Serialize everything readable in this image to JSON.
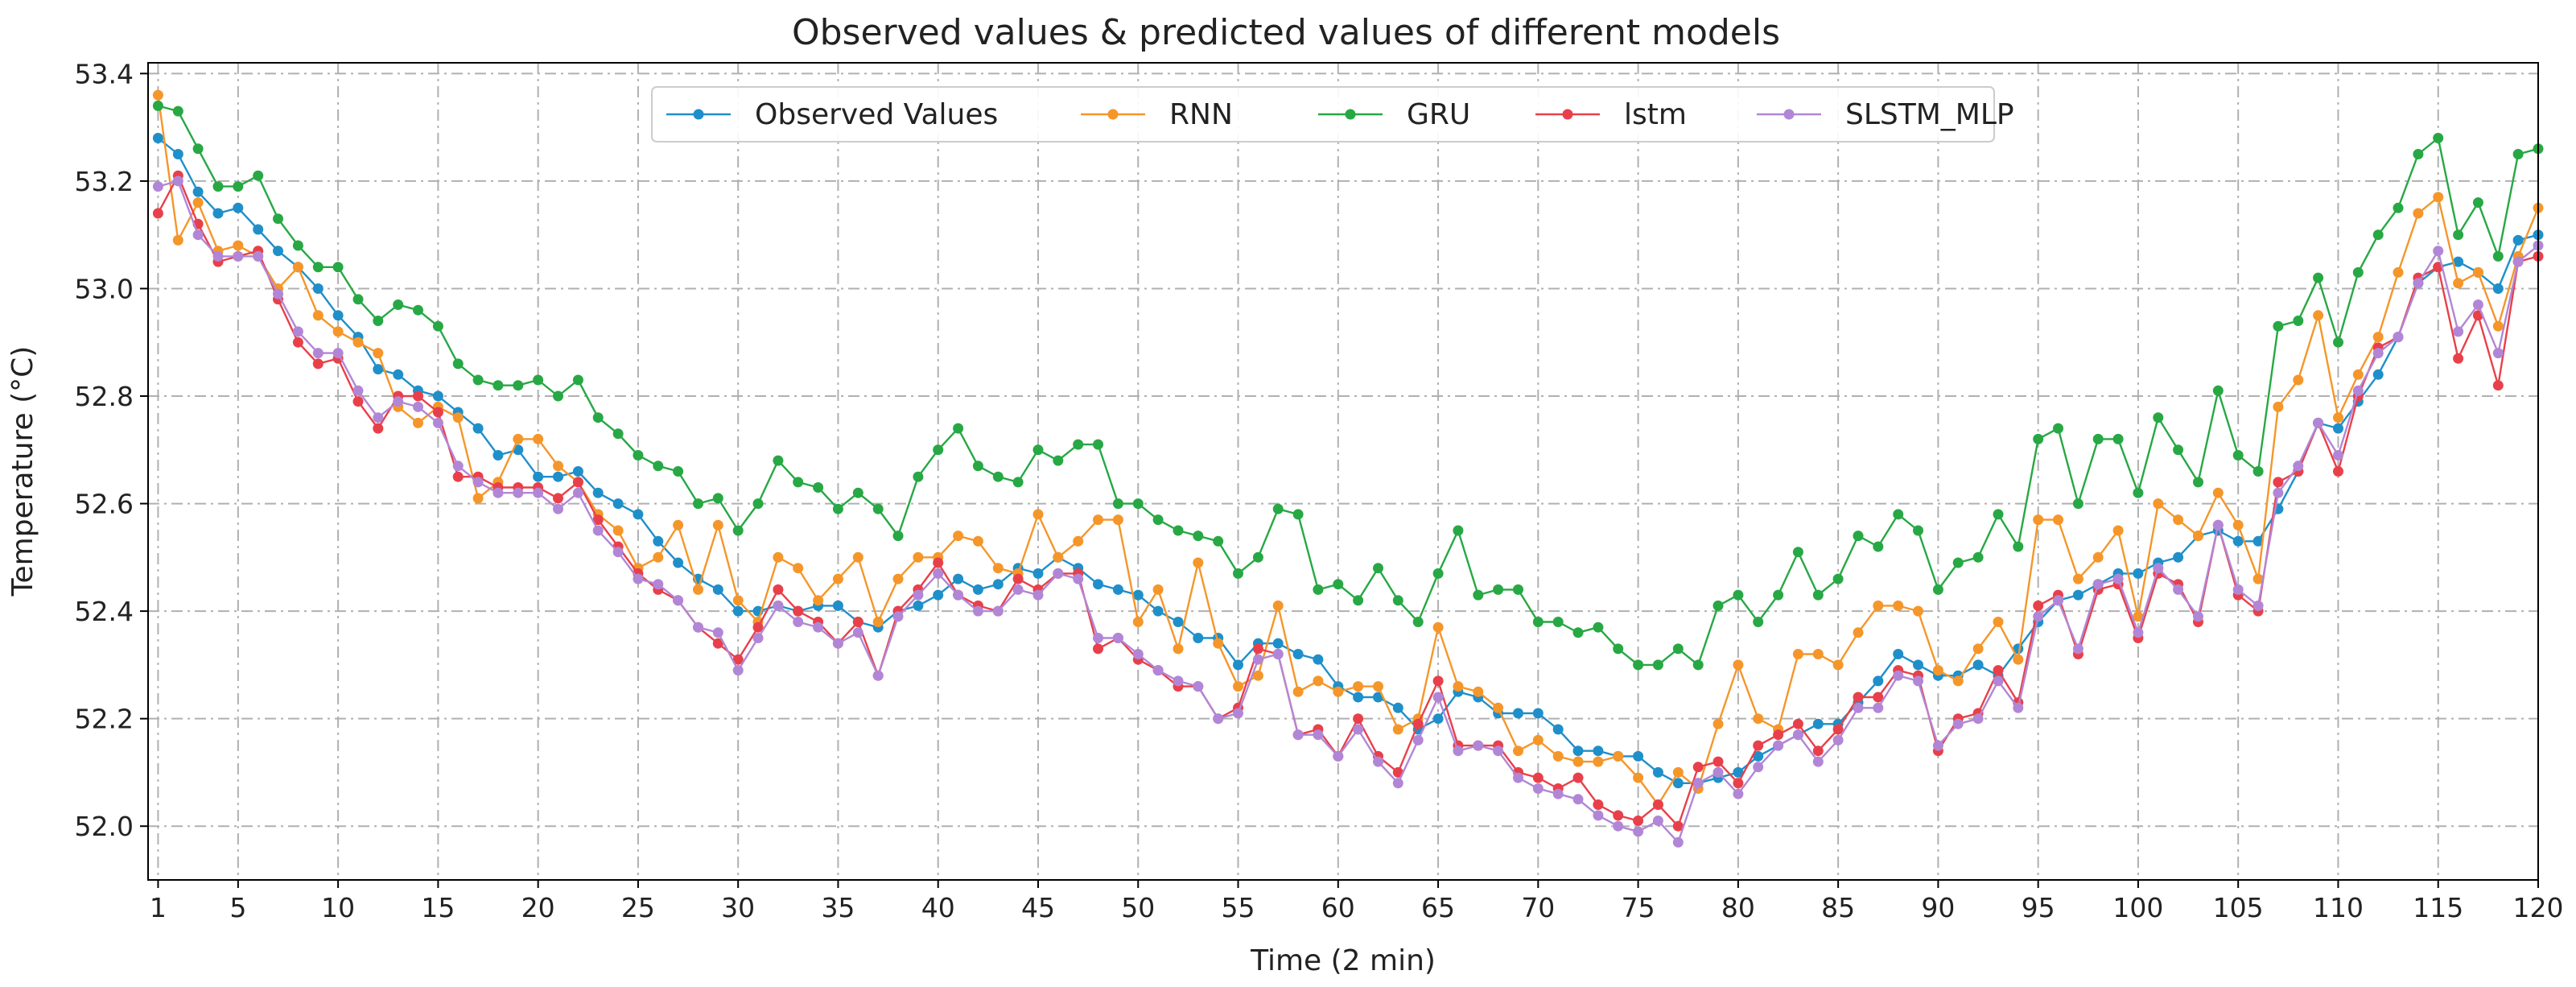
{
  "chart_data": {
    "type": "line",
    "title": "Observed values & predicted values of different models",
    "xlabel": "Time (2 min)",
    "ylabel": "Temperature (°C)",
    "xlim": [
      0.5,
      120
    ],
    "ylim": [
      51.9,
      53.42
    ],
    "xticks": [
      1,
      5,
      10,
      15,
      20,
      25,
      30,
      35,
      40,
      45,
      50,
      55,
      60,
      65,
      70,
      75,
      80,
      85,
      90,
      95,
      100,
      105,
      110,
      115,
      120
    ],
    "xtick_labels": [
      "1",
      "5",
      "10",
      "15",
      "20",
      "25",
      "30",
      "35",
      "40",
      "45",
      "50",
      "55",
      "60",
      "65",
      "70",
      "75",
      "80",
      "85",
      "90",
      "95",
      "100",
      "105",
      "110",
      "115",
      "120"
    ],
    "yticks": [
      52.0,
      52.2,
      52.4,
      52.6,
      52.8,
      53.0,
      53.2,
      53.4
    ],
    "ytick_labels": [
      "52.0",
      "52.2",
      "52.4",
      "52.6",
      "52.8",
      "53.0",
      "53.2",
      "53.4"
    ],
    "grid": true,
    "legend_position": "top-center",
    "x_start": 1,
    "series": [
      {
        "name": "Observed Values",
        "color": "#1f8fc9",
        "values": [
          53.28,
          53.25,
          53.18,
          53.14,
          53.15,
          53.11,
          53.07,
          53.04,
          53.0,
          52.95,
          52.91,
          52.85,
          52.84,
          52.81,
          52.8,
          52.77,
          52.74,
          52.69,
          52.7,
          52.65,
          52.65,
          52.66,
          52.62,
          52.6,
          52.58,
          52.53,
          52.49,
          52.46,
          52.44,
          52.4,
          52.4,
          52.41,
          52.4,
          52.41,
          52.41,
          52.38,
          52.37,
          52.4,
          52.41,
          52.43,
          52.46,
          52.44,
          52.45,
          52.48,
          52.47,
          52.5,
          52.48,
          52.45,
          52.44,
          52.43,
          52.4,
          52.38,
          52.35,
          52.35,
          52.3,
          52.34,
          52.34,
          52.32,
          52.31,
          52.26,
          52.24,
          52.24,
          52.22,
          52.18,
          52.2,
          52.25,
          52.24,
          52.21,
          52.21,
          52.21,
          52.18,
          52.14,
          52.14,
          52.13,
          52.13,
          52.1,
          52.08,
          52.08,
          52.09,
          52.1,
          52.13,
          52.15,
          52.17,
          52.19,
          52.19,
          52.23,
          52.27,
          52.32,
          52.3,
          52.28,
          52.28,
          52.3,
          52.28,
          52.33,
          52.38,
          52.42,
          52.43,
          52.45,
          52.47,
          52.47,
          52.49,
          52.5,
          52.54,
          52.55,
          52.53,
          52.53,
          52.59,
          52.66,
          52.75,
          52.74,
          52.79,
          52.84,
          52.91,
          53.01,
          53.04,
          53.05,
          53.03,
          53.0,
          53.09,
          53.1
        ]
      },
      {
        "name": "RNN",
        "color": "#f5962a",
        "values": [
          53.36,
          53.09,
          53.16,
          53.07,
          53.08,
          53.06,
          53.0,
          53.04,
          52.95,
          52.92,
          52.9,
          52.88,
          52.78,
          52.75,
          52.78,
          52.76,
          52.61,
          52.64,
          52.72,
          52.72,
          52.67,
          52.64,
          52.58,
          52.55,
          52.48,
          52.5,
          52.56,
          52.44,
          52.56,
          52.42,
          52.38,
          52.5,
          52.48,
          52.42,
          52.46,
          52.5,
          52.38,
          52.46,
          52.5,
          52.5,
          52.54,
          52.53,
          52.48,
          52.47,
          52.58,
          52.5,
          52.53,
          52.57,
          52.57,
          52.38,
          52.44,
          52.33,
          52.49,
          52.34,
          52.26,
          52.28,
          52.41,
          52.25,
          52.27,
          52.25,
          52.26,
          52.26,
          52.18,
          52.2,
          52.37,
          52.26,
          52.25,
          52.22,
          52.14,
          52.16,
          52.13,
          52.12,
          52.12,
          52.13,
          52.09,
          52.04,
          52.1,
          52.07,
          52.19,
          52.3,
          52.2,
          52.18,
          52.32,
          52.32,
          52.3,
          52.36,
          52.41,
          52.41,
          52.4,
          52.29,
          52.27,
          52.33,
          52.38,
          52.31,
          52.57,
          52.57,
          52.46,
          52.5,
          52.55,
          52.39,
          52.6,
          52.57,
          52.54,
          52.62,
          52.56,
          52.46,
          52.78,
          52.83,
          52.95,
          52.76,
          52.84,
          52.91,
          53.03,
          53.14,
          53.17,
          53.01,
          53.03,
          52.93,
          53.06,
          53.15
        ]
      },
      {
        "name": "GRU",
        "color": "#27a844",
        "values": [
          53.34,
          53.33,
          53.26,
          53.19,
          53.19,
          53.21,
          53.13,
          53.08,
          53.04,
          53.04,
          52.98,
          52.94,
          52.97,
          52.96,
          52.93,
          52.86,
          52.83,
          52.82,
          52.82,
          52.83,
          52.8,
          52.83,
          52.76,
          52.73,
          52.69,
          52.67,
          52.66,
          52.6,
          52.61,
          52.55,
          52.6,
          52.68,
          52.64,
          52.63,
          52.59,
          52.62,
          52.59,
          52.54,
          52.65,
          52.7,
          52.74,
          52.67,
          52.65,
          52.64,
          52.7,
          52.68,
          52.71,
          52.71,
          52.6,
          52.6,
          52.57,
          52.55,
          52.54,
          52.53,
          52.47,
          52.5,
          52.59,
          52.58,
          52.44,
          52.45,
          52.42,
          52.48,
          52.42,
          52.38,
          52.47,
          52.55,
          52.43,
          52.44,
          52.44,
          52.38,
          52.38,
          52.36,
          52.37,
          52.33,
          52.3,
          52.3,
          52.33,
          52.3,
          52.41,
          52.43,
          52.38,
          52.43,
          52.51,
          52.43,
          52.46,
          52.54,
          52.52,
          52.58,
          52.55,
          52.44,
          52.49,
          52.5,
          52.58,
          52.52,
          52.72,
          52.74,
          52.6,
          52.72,
          52.72,
          52.62,
          52.76,
          52.7,
          52.64,
          52.81,
          52.69,
          52.66,
          52.93,
          52.94,
          53.02,
          52.9,
          53.03,
          53.1,
          53.15,
          53.25,
          53.28,
          53.1,
          53.16,
          53.06,
          53.25,
          53.26
        ]
      },
      {
        "name": "lstm",
        "color": "#e8404a",
        "values": [
          53.14,
          53.21,
          53.12,
          53.05,
          53.06,
          53.07,
          52.98,
          52.9,
          52.86,
          52.87,
          52.79,
          52.74,
          52.8,
          52.8,
          52.77,
          52.65,
          52.65,
          52.63,
          52.63,
          52.63,
          52.61,
          52.64,
          52.57,
          52.52,
          52.47,
          52.44,
          52.42,
          52.37,
          52.34,
          52.31,
          52.37,
          52.44,
          52.4,
          52.38,
          52.34,
          52.38,
          52.28,
          52.4,
          52.44,
          52.49,
          52.43,
          52.41,
          52.4,
          52.46,
          52.44,
          52.47,
          52.47,
          52.33,
          52.35,
          52.31,
          52.29,
          52.26,
          52.26,
          52.2,
          52.22,
          52.33,
          52.32,
          52.17,
          52.18,
          52.13,
          52.2,
          52.13,
          52.1,
          52.19,
          52.27,
          52.15,
          52.15,
          52.15,
          52.1,
          52.09,
          52.07,
          52.09,
          52.04,
          52.02,
          52.01,
          52.04,
          52.0,
          52.11,
          52.12,
          52.08,
          52.15,
          52.17,
          52.19,
          52.14,
          52.18,
          52.24,
          52.24,
          52.29,
          52.28,
          52.14,
          52.2,
          52.21,
          52.29,
          52.23,
          52.41,
          52.43,
          52.32,
          52.44,
          52.45,
          52.35,
          52.47,
          52.45,
          52.38,
          52.56,
          52.43,
          52.4,
          52.64,
          52.66,
          52.75,
          52.66,
          52.8,
          52.89,
          52.91,
          53.02,
          53.04,
          52.87,
          52.95,
          52.82,
          53.05,
          53.06
        ]
      },
      {
        "name": "SLSTM_MLP",
        "color": "#b286d6",
        "values": [
          53.19,
          53.2,
          53.1,
          53.06,
          53.06,
          53.06,
          52.99,
          52.92,
          52.88,
          52.88,
          52.81,
          52.76,
          52.79,
          52.78,
          52.75,
          52.67,
          52.64,
          52.62,
          52.62,
          52.62,
          52.59,
          52.62,
          52.55,
          52.51,
          52.46,
          52.45,
          52.42,
          52.37,
          52.36,
          52.29,
          52.35,
          52.41,
          52.38,
          52.37,
          52.34,
          52.36,
          52.28,
          52.39,
          52.43,
          52.47,
          52.43,
          52.4,
          52.4,
          52.44,
          52.43,
          52.47,
          52.46,
          52.35,
          52.35,
          52.32,
          52.29,
          52.27,
          52.26,
          52.2,
          52.21,
          52.31,
          52.32,
          52.17,
          52.17,
          52.13,
          52.18,
          52.12,
          52.08,
          52.16,
          52.24,
          52.14,
          52.15,
          52.14,
          52.09,
          52.07,
          52.06,
          52.05,
          52.02,
          52.0,
          51.99,
          52.01,
          51.97,
          52.08,
          52.1,
          52.06,
          52.11,
          52.15,
          52.17,
          52.12,
          52.16,
          52.22,
          52.22,
          52.28,
          52.27,
          52.15,
          52.19,
          52.2,
          52.27,
          52.22,
          52.39,
          52.42,
          52.33,
          52.45,
          52.46,
          52.36,
          52.48,
          52.44,
          52.39,
          52.56,
          52.44,
          52.41,
          52.62,
          52.67,
          52.75,
          52.69,
          52.81,
          52.88,
          52.91,
          53.01,
          53.07,
          52.92,
          52.97,
          52.88,
          53.05,
          53.08
        ]
      }
    ]
  }
}
